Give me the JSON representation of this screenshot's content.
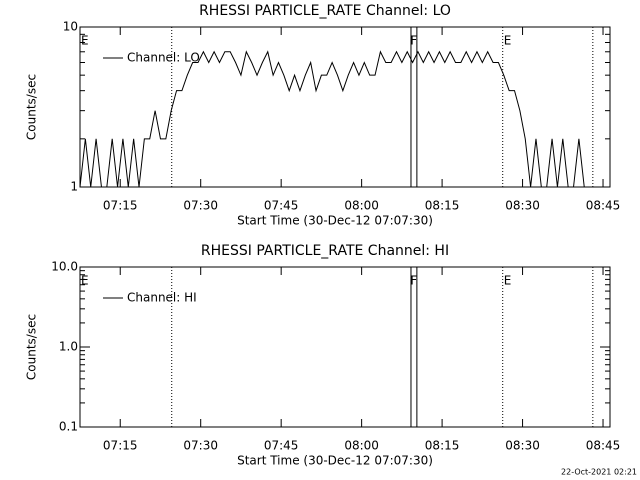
{
  "footer": "22-Oct-2021 02:21",
  "chart_data": [
    {
      "type": "line",
      "title": "RHESSI PARTICLE_RATE Channel: LO",
      "xlabel": "Start Time (30-Dec-12 07:07:30)",
      "ylabel": "Counts/sec",
      "ylog": true,
      "ylim": [
        1,
        10
      ],
      "yticks": [
        1,
        10
      ],
      "xlim": [
        0,
        98.8
      ],
      "xticks": [
        {
          "value": 7.5,
          "label": "07:15"
        },
        {
          "value": 22.5,
          "label": "07:30"
        },
        {
          "value": 37.5,
          "label": "07:45"
        },
        {
          "value": 52.5,
          "label": "08:00"
        },
        {
          "value": 67.5,
          "label": "08:15"
        },
        {
          "value": 82.5,
          "label": "08:30"
        },
        {
          "value": 97.5,
          "label": "08:45"
        }
      ],
      "legend": "upper left",
      "markers": [
        {
          "label": "E",
          "x": 0.9
        },
        {
          "label": "F",
          "x": 62.2
        },
        {
          "label": "E",
          "x": 79.7
        }
      ],
      "dotted_lines": [
        17.1,
        78.8,
        95.6
      ],
      "solid_lines": [
        61.7,
        62.8
      ],
      "x": [
        0,
        1,
        2,
        3,
        4,
        5,
        6,
        7,
        8,
        9,
        10,
        11,
        12,
        13,
        14,
        15,
        16,
        17,
        18,
        19,
        20,
        21,
        22,
        23,
        24,
        25,
        26,
        27,
        28,
        29,
        30,
        31,
        32,
        33,
        34,
        35,
        36,
        37,
        38,
        39,
        40,
        41,
        42,
        43,
        44,
        45,
        46,
        47,
        48,
        49,
        50,
        51,
        52,
        53,
        54,
        55,
        56,
        57,
        58,
        59,
        60,
        61,
        62,
        63,
        64,
        65,
        66,
        67,
        68,
        69,
        70,
        71,
        72,
        73,
        74,
        75,
        76,
        77,
        78,
        79,
        80,
        81,
        82,
        83,
        84,
        85,
        86,
        87,
        88,
        89,
        90,
        91,
        92,
        93,
        94,
        95
      ],
      "series": [
        {
          "name": "Channel: LO",
          "color": "#000000",
          "values": [
            1,
            2,
            1,
            2,
            1,
            1,
            2,
            1,
            2,
            1,
            2,
            1,
            2,
            2,
            3,
            2,
            2,
            3,
            4,
            4,
            5,
            6,
            6,
            7,
            6,
            7,
            6,
            7,
            7,
            6,
            5,
            7,
            6,
            5,
            6,
            7,
            5,
            6,
            5,
            4,
            5,
            4,
            5,
            6,
            4,
            5,
            5,
            6,
            5,
            4,
            5,
            6,
            5,
            6,
            5,
            5,
            7,
            6,
            6,
            7,
            6,
            7,
            6,
            7,
            6,
            7,
            6,
            7,
            6,
            7,
            6,
            6,
            7,
            6,
            7,
            6,
            7,
            6,
            6,
            5,
            4,
            4,
            3,
            2,
            1,
            2,
            1,
            1,
            2,
            1,
            2,
            1,
            1,
            2,
            1,
            1
          ]
        }
      ]
    },
    {
      "type": "line",
      "title": "RHESSI PARTICLE_RATE Channel: HI",
      "xlabel": "Start Time (30-Dec-12 07:07:30)",
      "ylabel": "Counts/sec",
      "ylog": true,
      "ylim": [
        0.1,
        10
      ],
      "yticks": [
        0.1,
        {
          "value": 1,
          "label": "1.0"
        },
        {
          "value": 10,
          "label": "10.0"
        }
      ],
      "xlim": [
        0,
        98.8
      ],
      "xticks": [
        {
          "value": 7.5,
          "label": "07:15"
        },
        {
          "value": 22.5,
          "label": "07:30"
        },
        {
          "value": 37.5,
          "label": "07:45"
        },
        {
          "value": 52.5,
          "label": "08:00"
        },
        {
          "value": 67.5,
          "label": "08:15"
        },
        {
          "value": 82.5,
          "label": "08:30"
        },
        {
          "value": 97.5,
          "label": "08:45"
        }
      ],
      "legend": "upper left",
      "markers": [
        {
          "label": "E",
          "x": 0.9
        },
        {
          "label": "F",
          "x": 62.2
        },
        {
          "label": "E",
          "x": 79.7
        }
      ],
      "dotted_lines": [
        17.1,
        78.8,
        95.6
      ],
      "solid_lines": [
        61.7,
        62.8
      ],
      "x": [],
      "series": [
        {
          "name": "Channel: HI",
          "color": "#000000",
          "values": []
        }
      ]
    }
  ]
}
